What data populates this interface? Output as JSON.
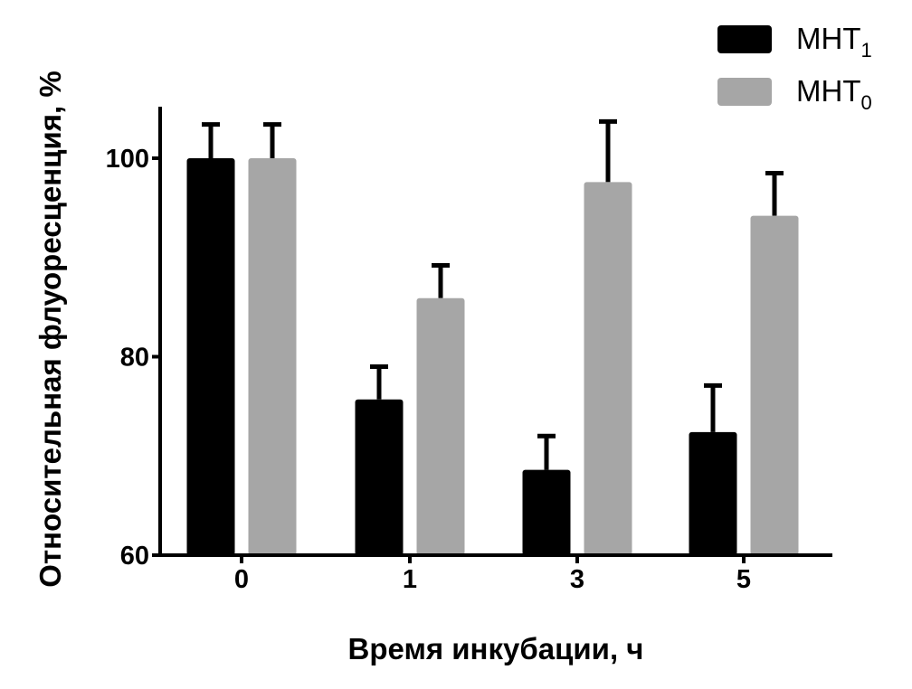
{
  "chart_data": {
    "type": "bar",
    "title": "",
    "xlabel": "Время инкубации, ч",
    "ylabel": "Относительная флуоресценция, %",
    "categories": [
      "0",
      "1",
      "3",
      "5"
    ],
    "ylim": [
      60,
      105
    ],
    "yticks": [
      60,
      80,
      100
    ],
    "series": [
      {
        "name": "МНТ",
        "name_sub": "1",
        "color": "#000000",
        "values": [
          100,
          75.7,
          68.6,
          72.4
        ],
        "errors": [
          3.4,
          3.3,
          3.4,
          4.7
        ]
      },
      {
        "name": "МНТ",
        "name_sub": "0",
        "color": "#a6a6a6",
        "values": [
          100,
          85.9,
          97.6,
          94.2
        ],
        "errors": [
          3.4,
          3.3,
          6.1,
          4.3
        ]
      }
    ],
    "legend_position": "top-right",
    "grid": false
  }
}
